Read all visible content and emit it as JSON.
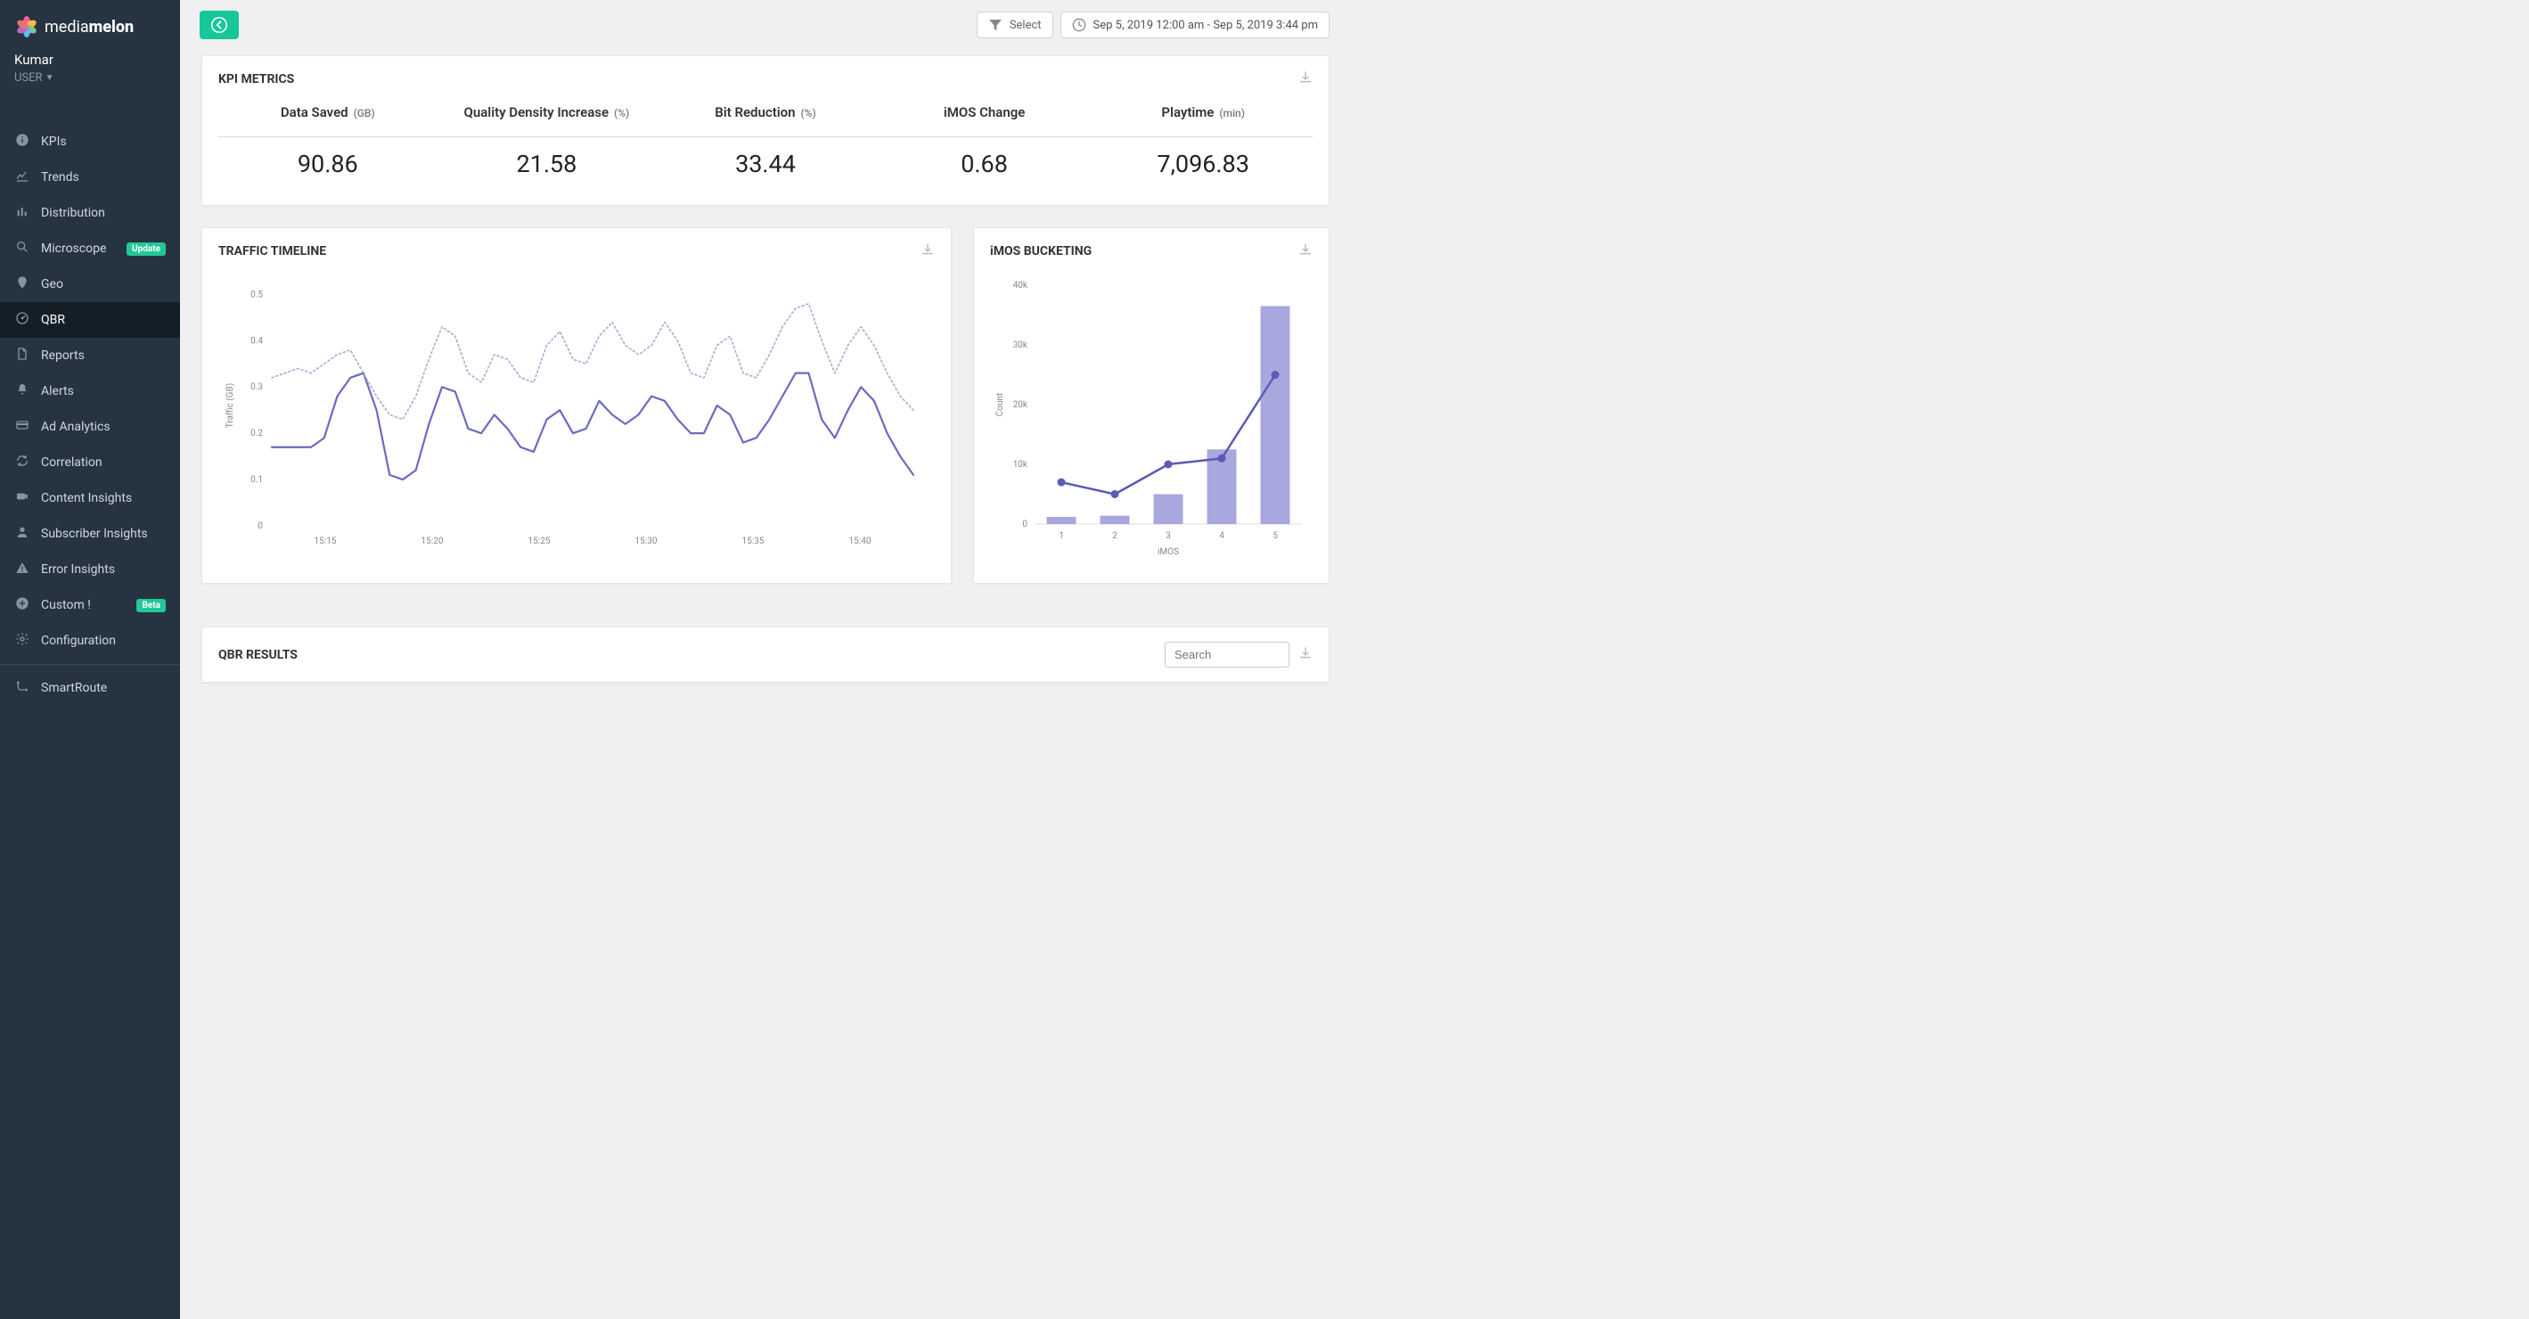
{
  "brand": {
    "name_light": "media",
    "name_bold": "melon"
  },
  "user": {
    "name": "Kumar",
    "role": "USER"
  },
  "sidebar": {
    "items": [
      {
        "id": "kpis",
        "label": "KPIs",
        "icon": "info"
      },
      {
        "id": "trends",
        "label": "Trends",
        "icon": "linechart"
      },
      {
        "id": "distribution",
        "label": "Distribution",
        "icon": "barchart"
      },
      {
        "id": "microscope",
        "label": "Microscope",
        "icon": "search",
        "badge": "Update",
        "badge_style": "update"
      },
      {
        "id": "geo",
        "label": "Geo",
        "icon": "pin"
      },
      {
        "id": "qbr",
        "label": "QBR",
        "icon": "dashboard",
        "active": true
      },
      {
        "id": "reports",
        "label": "Reports",
        "icon": "file"
      },
      {
        "id": "alerts",
        "label": "Alerts",
        "icon": "bell"
      },
      {
        "id": "adanalytics",
        "label": "Ad Analytics",
        "icon": "card"
      },
      {
        "id": "correlation",
        "label": "Correlation",
        "icon": "refresh"
      },
      {
        "id": "content",
        "label": "Content Insights",
        "icon": "camera"
      },
      {
        "id": "subscriber",
        "label": "Subscriber Insights",
        "icon": "user"
      },
      {
        "id": "error",
        "label": "Error Insights",
        "icon": "warning"
      },
      {
        "id": "custom",
        "label": "Custom !",
        "icon": "plus",
        "badge": "Beta",
        "badge_style": "beta"
      },
      {
        "id": "configuration",
        "label": "Configuration",
        "icon": "gear"
      }
    ],
    "secondary": [
      {
        "id": "smartroute",
        "label": "SmartRoute",
        "icon": "route"
      }
    ]
  },
  "topbar": {
    "select_label": "Select",
    "daterange": "Sep 5, 2019 12:00 am - Sep 5, 2019 3:44 pm"
  },
  "kpi_panel": {
    "title": "KPI METRICS",
    "items": [
      {
        "label": "Data Saved",
        "unit": "(GB)",
        "value": "90.86"
      },
      {
        "label": "Quality Density Increase",
        "unit": "(%)",
        "value": "21.58"
      },
      {
        "label": "Bit Reduction",
        "unit": "(%)",
        "value": "33.44"
      },
      {
        "label": "iMOS Change",
        "unit": "",
        "value": "0.68"
      },
      {
        "label": "Playtime",
        "unit": "(min)",
        "value": "7,096.83"
      }
    ]
  },
  "traffic_chart": {
    "title": "TRAFFIC TIMELINE",
    "type": "line",
    "y_label": "Traffic (GB)",
    "ylim": [
      0,
      0.52
    ],
    "ytick_step": 0.1,
    "yticks": [
      0,
      0.1,
      0.2,
      0.3,
      0.4,
      0.5
    ],
    "x_labels": [
      "15:15",
      "15:20",
      "15:25",
      "15:30",
      "15:35",
      "15:40"
    ],
    "x_points": 50,
    "background_color": "#ffffff",
    "axis_color": "#dddddd",
    "series": [
      {
        "name": "solid",
        "color": "#6b6bc0",
        "width": 2.2,
        "style": "solid",
        "values": [
          0.17,
          0.17,
          0.17,
          0.17,
          0.19,
          0.28,
          0.32,
          0.33,
          0.25,
          0.11,
          0.1,
          0.12,
          0.22,
          0.3,
          0.29,
          0.21,
          0.2,
          0.24,
          0.21,
          0.17,
          0.16,
          0.23,
          0.25,
          0.2,
          0.21,
          0.27,
          0.24,
          0.22,
          0.24,
          0.28,
          0.27,
          0.23,
          0.2,
          0.2,
          0.26,
          0.24,
          0.18,
          0.19,
          0.23,
          0.28,
          0.33,
          0.33,
          0.23,
          0.19,
          0.25,
          0.3,
          0.27,
          0.2,
          0.15,
          0.11
        ]
      },
      {
        "name": "dotted",
        "color": "#a9a9d9",
        "width": 1.6,
        "style": "dotted",
        "values": [
          0.32,
          0.33,
          0.34,
          0.33,
          0.35,
          0.37,
          0.38,
          0.33,
          0.28,
          0.24,
          0.23,
          0.28,
          0.36,
          0.43,
          0.41,
          0.33,
          0.31,
          0.37,
          0.36,
          0.32,
          0.31,
          0.39,
          0.42,
          0.36,
          0.35,
          0.41,
          0.44,
          0.39,
          0.37,
          0.39,
          0.44,
          0.4,
          0.33,
          0.32,
          0.39,
          0.41,
          0.33,
          0.32,
          0.37,
          0.43,
          0.47,
          0.48,
          0.4,
          0.33,
          0.39,
          0.43,
          0.39,
          0.33,
          0.28,
          0.25
        ]
      }
    ]
  },
  "imos_chart": {
    "title": "iMOS BUCKETING",
    "type": "bar_line",
    "x_label": "iMOS",
    "y_label": "Count",
    "categories": [
      "1",
      "2",
      "3",
      "4",
      "5"
    ],
    "bar_values": [
      1200,
      1400,
      5000,
      12500,
      36500
    ],
    "line_values": [
      7000,
      5000,
      10000,
      11000,
      25000
    ],
    "ylim": [
      0,
      40000
    ],
    "yticks": [
      0,
      10000,
      20000,
      30000,
      40000
    ],
    "ytick_labels": [
      "0",
      "10k",
      "20k",
      "30k",
      "40k"
    ],
    "bar_color": "#a8a8df",
    "line_color": "#5b5bb5",
    "marker_color": "#5b5bb5",
    "bar_width": 0.55,
    "background_color": "#ffffff",
    "axis_color": "#dddddd"
  },
  "qbr_results": {
    "title": "QBR RESULTS",
    "search_placeholder": "Search"
  }
}
